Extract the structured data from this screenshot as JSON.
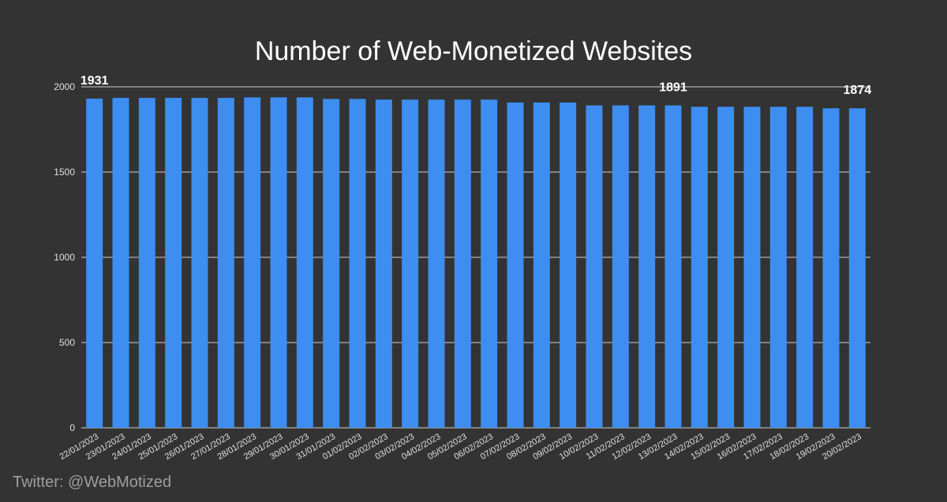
{
  "chart_data": {
    "type": "bar",
    "title": "Number of Web-Monetized Websites",
    "xlabel": "",
    "ylabel": "",
    "ylim": [
      0,
      2000
    ],
    "yticks": [
      0,
      500,
      1000,
      1500,
      2000
    ],
    "grid": true,
    "categories": [
      "22/01/2023",
      "23/01/2023",
      "24/01/2023",
      "25/01/2023",
      "26/01/2023",
      "27/01/2023",
      "28/01/2023",
      "29/01/2023",
      "30/01/2023",
      "31/01/2023",
      "01/02/2023",
      "02/02/2023",
      "03/02/2023",
      "04/02/2023",
      "05/02/2023",
      "06/02/2023",
      "07/02/2023",
      "08/02/2023",
      "09/02/2023",
      "10/02/2023",
      "11/02/2023",
      "12/02/2023",
      "13/02/2023",
      "14/02/2023",
      "15/02/2023",
      "16/02/2023",
      "17/02/2023",
      "18/02/2023",
      "19/02/2023",
      "20/02/2023"
    ],
    "values": [
      1931,
      1935,
      1935,
      1935,
      1935,
      1935,
      1938,
      1938,
      1938,
      1929,
      1929,
      1925,
      1925,
      1925,
      1925,
      1925,
      1908,
      1908,
      1908,
      1891,
      1891,
      1891,
      1891,
      1883,
      1883,
      1883,
      1883,
      1883,
      1874,
      1874
    ],
    "annotations": [
      {
        "index": 0,
        "text": "1931"
      },
      {
        "index": 22,
        "text": "1891"
      },
      {
        "index": 29,
        "text": "1874"
      }
    ],
    "colors": {
      "bar": "#3d8ef0",
      "background": "#333333",
      "grid": "#cfcfcf",
      "text": "#ffffff",
      "tick": "#e0e0e0"
    }
  },
  "footer": {
    "credit": "Twitter: @WebMotized"
  }
}
